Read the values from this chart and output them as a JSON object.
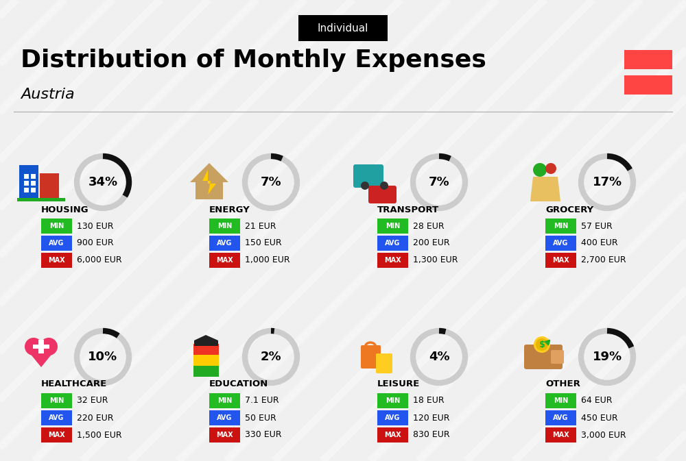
{
  "title": "Distribution of Monthly Expenses",
  "subtitle": "Austria",
  "badge": "Individual",
  "bg_color": "#f0f0f0",
  "categories": [
    {
      "name": "HOUSING",
      "pct": 34,
      "min_val": "130 EUR",
      "avg_val": "900 EUR",
      "max_val": "6,000 EUR",
      "col": 0,
      "row": 0,
      "icon_color": "#2255cc"
    },
    {
      "name": "ENERGY",
      "pct": 7,
      "min_val": "21 EUR",
      "avg_val": "150 EUR",
      "max_val": "1,000 EUR",
      "col": 1,
      "row": 0,
      "icon_color": "#f0c030"
    },
    {
      "name": "TRANSPORT",
      "pct": 7,
      "min_val": "28 EUR",
      "avg_val": "200 EUR",
      "max_val": "1,300 EUR",
      "col": 2,
      "row": 0,
      "icon_color": "#20a0a0"
    },
    {
      "name": "GROCERY",
      "pct": 17,
      "min_val": "57 EUR",
      "avg_val": "400 EUR",
      "max_val": "2,700 EUR",
      "col": 3,
      "row": 0,
      "icon_color": "#e08020"
    },
    {
      "name": "HEALTHCARE",
      "pct": 10,
      "min_val": "32 EUR",
      "avg_val": "220 EUR",
      "max_val": "1,500 EUR",
      "col": 0,
      "row": 1,
      "icon_color": "#e03060"
    },
    {
      "name": "EDUCATION",
      "pct": 2,
      "min_val": "7.1 EUR",
      "avg_val": "50 EUR",
      "max_val": "330 EUR",
      "col": 1,
      "row": 1,
      "icon_color": "#30a030"
    },
    {
      "name": "LEISURE",
      "pct": 4,
      "min_val": "18 EUR",
      "avg_val": "120 EUR",
      "max_val": "830 EUR",
      "col": 2,
      "row": 1,
      "icon_color": "#e07020"
    },
    {
      "name": "OTHER",
      "pct": 19,
      "min_val": "64 EUR",
      "avg_val": "450 EUR",
      "max_val": "3,000 EUR",
      "col": 3,
      "row": 1,
      "icon_color": "#c08040"
    }
  ],
  "min_color": "#22bb22",
  "avg_color": "#2255ee",
  "max_color": "#cc1111",
  "donut_bg": "#cccccc",
  "donut_fg": "#111111",
  "austria_red": "#ff4444",
  "austria_white": "#ffffff"
}
